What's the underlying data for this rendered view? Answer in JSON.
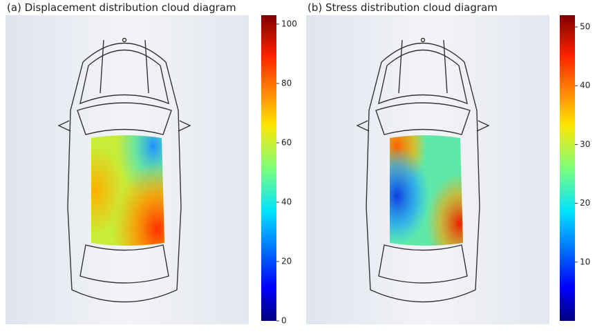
{
  "panels": [
    {
      "title": "(a) Displacement distribution cloud diagram",
      "colorbar": {
        "range": [
          0,
          103
        ],
        "ticks": [
          0,
          20,
          40,
          60,
          80,
          100
        ]
      }
    },
    {
      "title": "(b) Stress distribution cloud diagram",
      "colorbar": {
        "range": [
          0,
          52
        ],
        "ticks": [
          10,
          20,
          30,
          40,
          50
        ]
      }
    }
  ]
}
